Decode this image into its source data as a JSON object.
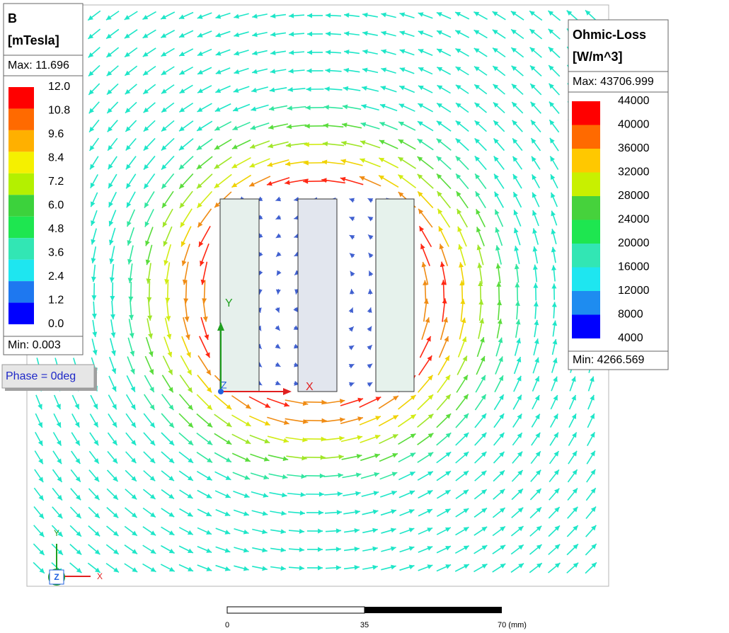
{
  "b_legend": {
    "title": "B",
    "unit": "[mTesla]",
    "max": "Max: 11.696",
    "labels": [
      "12.0",
      "10.8",
      "9.6",
      "8.4",
      "7.2",
      "6.0",
      "4.8",
      "3.6",
      "2.4",
      "1.2",
      "0.0"
    ],
    "colors": [
      "#ff0000",
      "#ff6a00",
      "#ffb000",
      "#f5f000",
      "#b4f000",
      "#3cd23c",
      "#1ee650",
      "#32e6b4",
      "#1ee6f0",
      "#1e78f0",
      "#0000ff"
    ],
    "min": "Min:  0.003"
  },
  "ohmic_legend": {
    "title": "Ohmic-Loss",
    "unit": "[W/m^3]",
    "max": "Max: 43706.999",
    "labels": [
      "44000",
      "40000",
      "36000",
      "32000",
      "28000",
      "24000",
      "20000",
      "16000",
      "12000",
      "8000",
      "4000"
    ],
    "colors": [
      "#ff0000",
      "#ff6a00",
      "#ffc800",
      "#c8f000",
      "#46d23c",
      "#1ee650",
      "#32e6b4",
      "#1ee6f0",
      "#1e8cf0",
      "#0000ff"
    ],
    "min": "Min:  4266.569"
  },
  "phase": "Phase = 0deg",
  "axes": {
    "x": "X",
    "y": "Y",
    "z": "Z"
  },
  "scale_bar": {
    "labels": [
      "0",
      "35",
      "70 (mm)"
    ]
  }
}
